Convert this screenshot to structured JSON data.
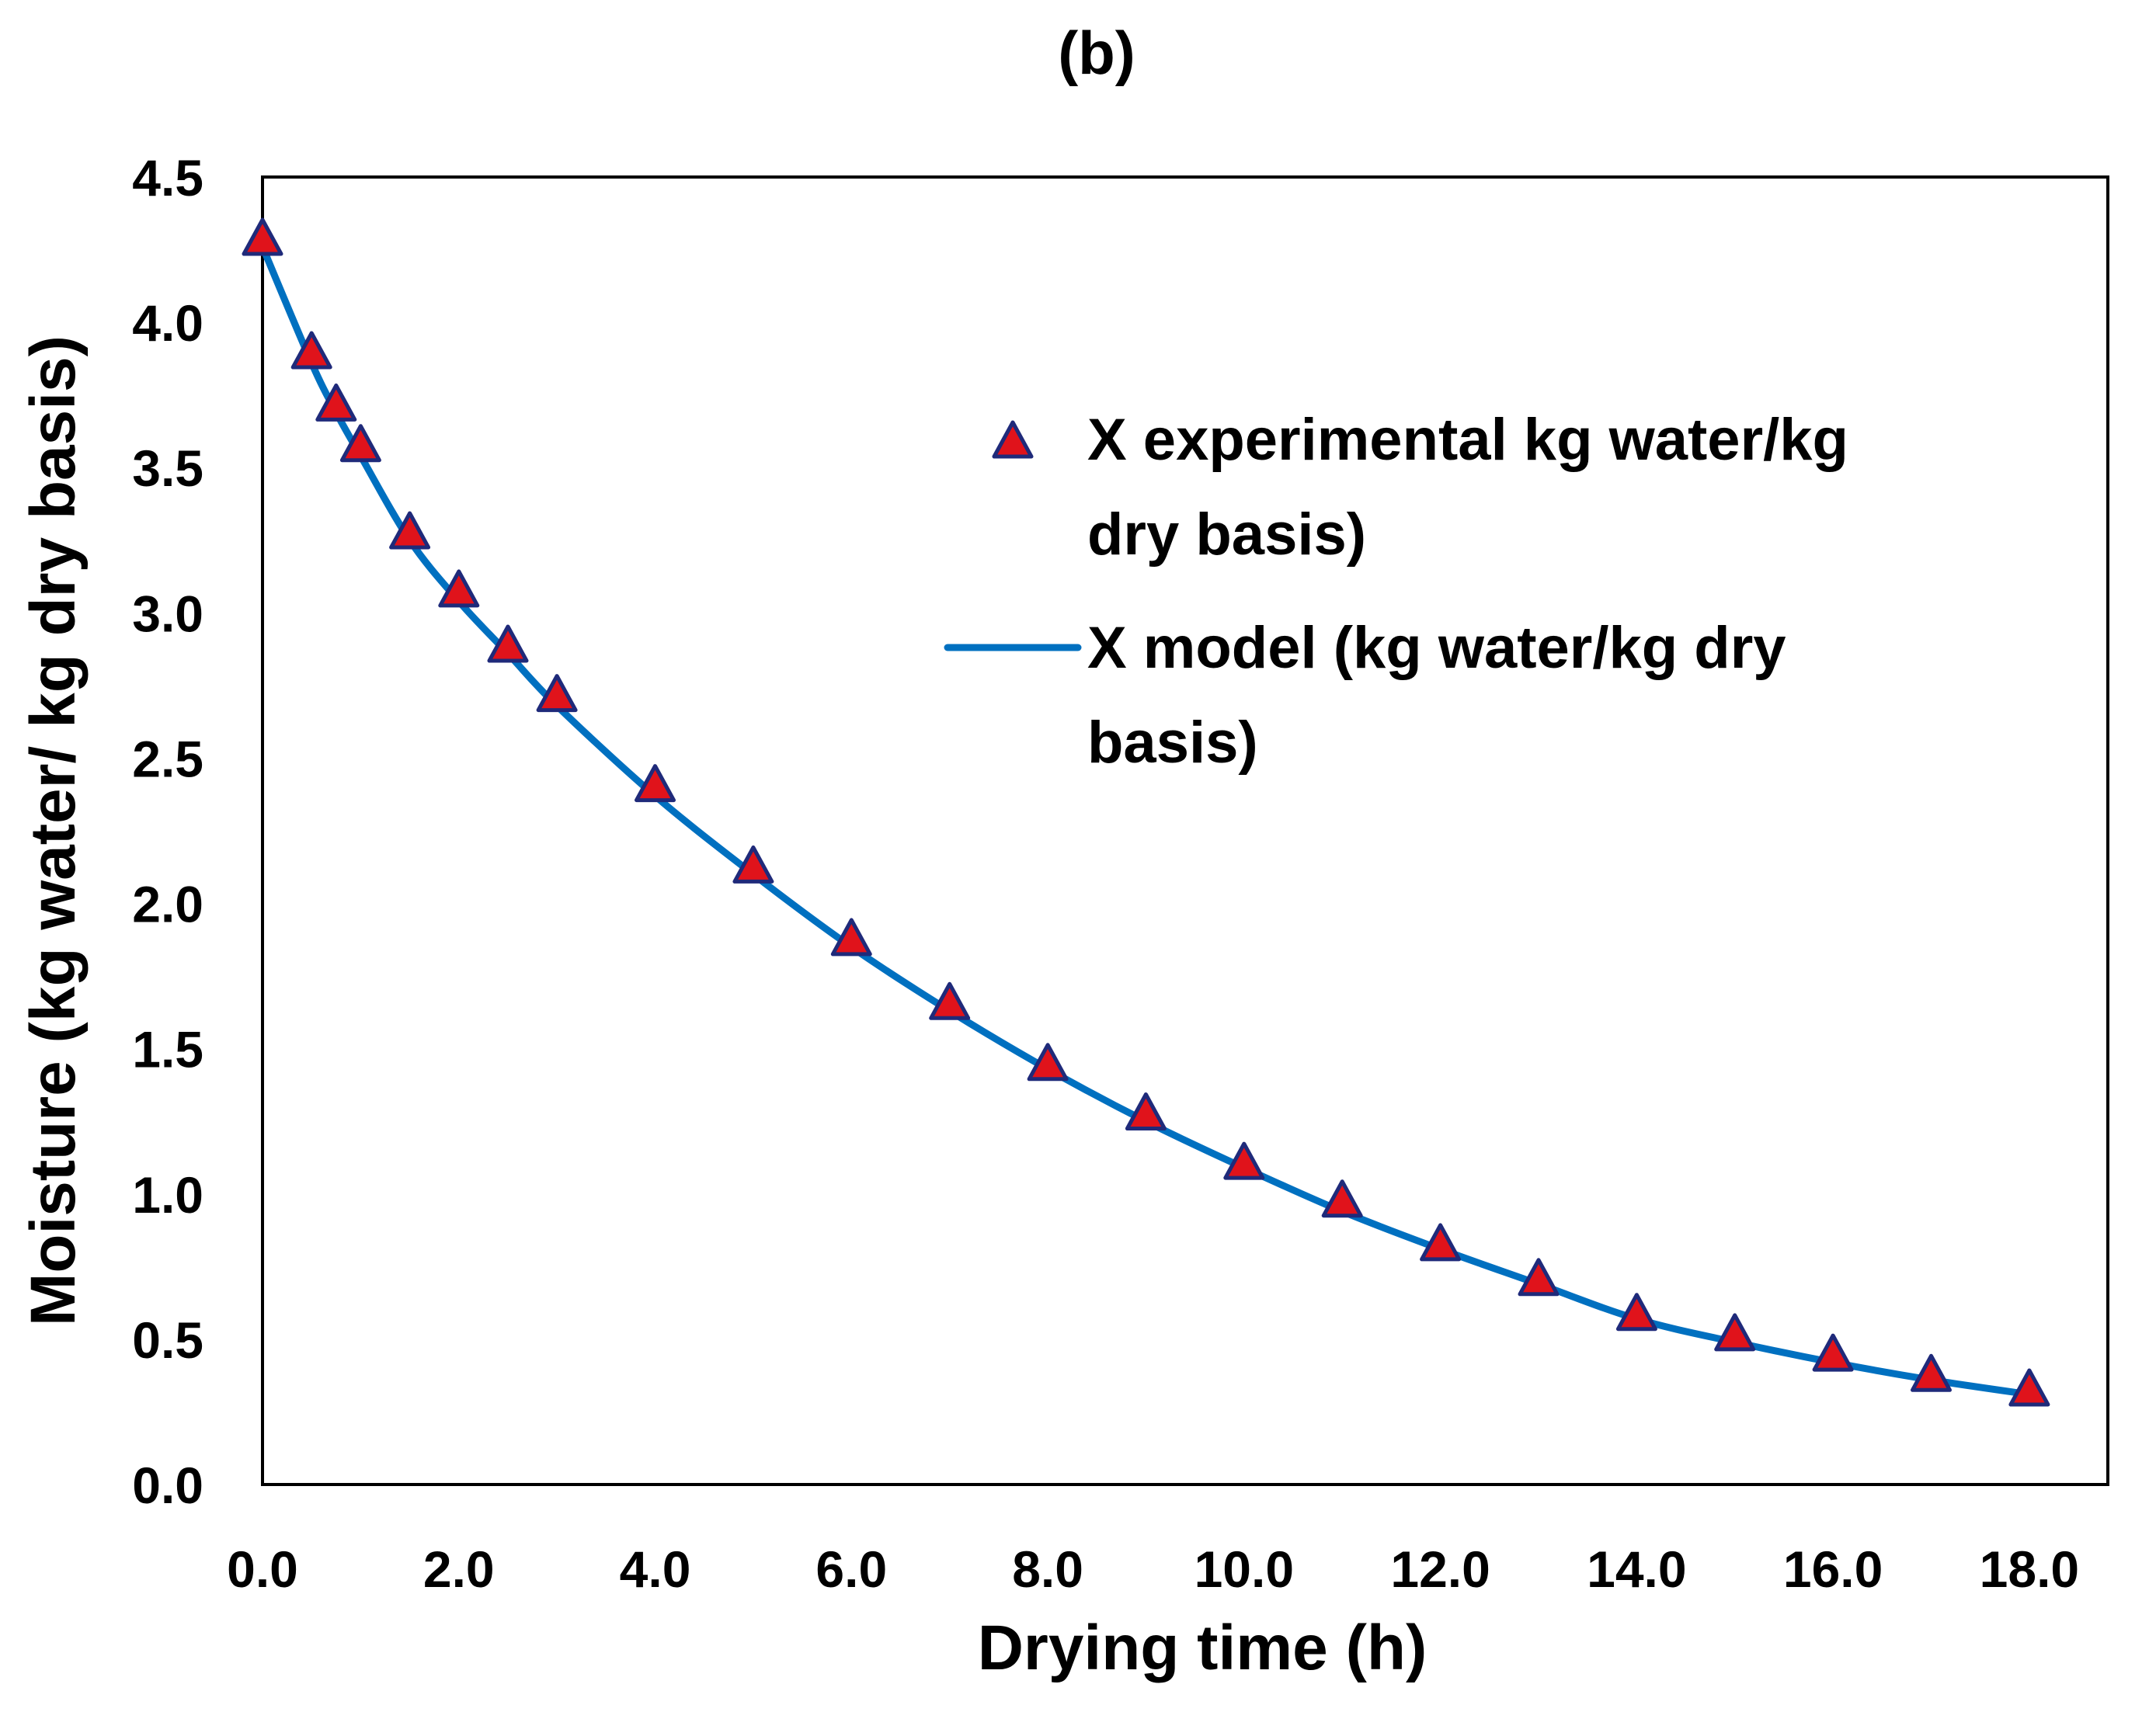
{
  "chart_data": {
    "type": "scatter",
    "title": "(b)",
    "xlabel": "Drying time (h)",
    "ylabel": "Moisture (kg water/ kg dry basis)",
    "xlim": [
      0,
      18.8
    ],
    "ylim": [
      0,
      4.5
    ],
    "grid": false,
    "legend_position": "top-right",
    "x_ticks": [
      "0.0",
      "2.0",
      "4.0",
      "6.0",
      "8.0",
      "10.0",
      "12.0",
      "14.0",
      "16.0",
      "18.0"
    ],
    "y_ticks": [
      "0.0",
      "0.5",
      "1.0",
      "1.5",
      "2.0",
      "2.5",
      "3.0",
      "3.5",
      "4.0",
      "4.5"
    ],
    "x_tick_values": [
      0,
      2,
      4,
      6,
      8,
      10,
      12,
      14,
      16,
      18
    ],
    "y_tick_values": [
      0,
      0.5,
      1.0,
      1.5,
      2.0,
      2.5,
      3.0,
      3.5,
      4.0,
      4.5
    ],
    "series": [
      {
        "name": "X experimental kg water/kg dry basis)",
        "kind": "scatter",
        "marker": "triangle",
        "color": "#e0131b",
        "edge_color": "#1f2a7a",
        "x": [
          0,
          0.5,
          0.75,
          1.0,
          1.5,
          2.0,
          2.5,
          3.0,
          4.0,
          5.0,
          6.0,
          7.0,
          8.0,
          9.0,
          10.0,
          11.0,
          12.0,
          13.0,
          14.0,
          15.0,
          16.0,
          17.0,
          18.0
        ],
        "y": [
          4.28,
          3.89,
          3.71,
          3.57,
          3.27,
          3.07,
          2.88,
          2.71,
          2.4,
          2.12,
          1.87,
          1.65,
          1.44,
          1.27,
          1.1,
          0.97,
          0.82,
          0.7,
          0.58,
          0.51,
          0.44,
          0.37,
          0.32
        ]
      },
      {
        "name": "X model (kg water/kg dry basis)",
        "kind": "line",
        "color": "#0070c0",
        "x": [
          0,
          0.5,
          0.75,
          1.0,
          1.5,
          2.0,
          2.5,
          3.0,
          4.0,
          5.0,
          6.0,
          7.0,
          8.0,
          9.0,
          10.0,
          11.0,
          12.0,
          13.0,
          14.0,
          15.0,
          16.0,
          17.0,
          18.0
        ],
        "y": [
          4.26,
          3.86,
          3.69,
          3.54,
          3.25,
          3.04,
          2.86,
          2.68,
          2.37,
          2.1,
          1.85,
          1.63,
          1.43,
          1.25,
          1.09,
          0.94,
          0.81,
          0.69,
          0.57,
          0.49,
          0.42,
          0.36,
          0.31
        ]
      }
    ],
    "legend": {
      "experimental_line1": "X experimental kg water/kg",
      "experimental_line2": "dry basis)",
      "model_line1": "X model (kg water/kg dry",
      "model_line2": "basis)"
    }
  }
}
